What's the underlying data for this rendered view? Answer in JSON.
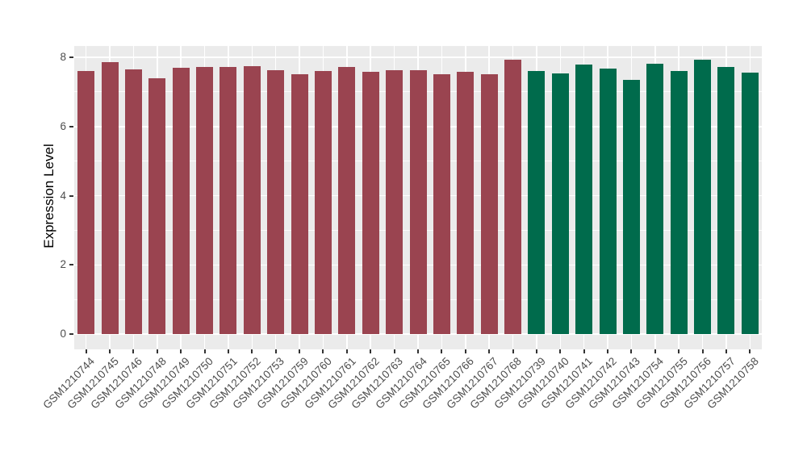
{
  "chart_data": {
    "type": "bar",
    "title": "",
    "xlabel": "",
    "ylabel": "Expression Level",
    "ylim": [
      0,
      8.35
    ],
    "y_ticks": [
      0,
      2,
      4,
      6,
      8
    ],
    "y_minor_ticks": [
      1,
      3,
      5,
      7
    ],
    "grid": true,
    "legend": "none",
    "panel_background": "#EBEBEB",
    "grid_color": "#FFFFFF",
    "axis_text_color": "#4d4d4d",
    "series": [
      {
        "name": "group-maroon",
        "color": "#9A4450",
        "points": [
          {
            "label": "GSM1210744",
            "value": 7.61
          },
          {
            "label": "GSM1210745",
            "value": 7.86
          },
          {
            "label": "GSM1210746",
            "value": 7.64
          },
          {
            "label": "GSM1210748",
            "value": 7.4
          },
          {
            "label": "GSM1210749",
            "value": 7.69
          },
          {
            "label": "GSM1210750",
            "value": 7.71
          },
          {
            "label": "GSM1210751",
            "value": 7.73
          },
          {
            "label": "GSM1210752",
            "value": 7.74
          },
          {
            "label": "GSM1210753",
            "value": 7.63
          },
          {
            "label": "GSM1210759",
            "value": 7.5
          },
          {
            "label": "GSM1210760",
            "value": 7.6
          },
          {
            "label": "GSM1210761",
            "value": 7.73
          },
          {
            "label": "GSM1210762",
            "value": 7.58
          },
          {
            "label": "GSM1210763",
            "value": 7.63
          },
          {
            "label": "GSM1210764",
            "value": 7.63
          },
          {
            "label": "GSM1210765",
            "value": 7.5
          },
          {
            "label": "GSM1210766",
            "value": 7.59
          },
          {
            "label": "GSM1210767",
            "value": 7.52
          },
          {
            "label": "GSM1210768",
            "value": 7.93
          }
        ]
      },
      {
        "name": "group-green",
        "color": "#006B4C",
        "points": [
          {
            "label": "GSM1210739",
            "value": 7.61
          },
          {
            "label": "GSM1210740",
            "value": 7.53
          },
          {
            "label": "GSM1210741",
            "value": 7.78
          },
          {
            "label": "GSM1210742",
            "value": 7.68
          },
          {
            "label": "GSM1210743",
            "value": 7.34
          },
          {
            "label": "GSM1210754",
            "value": 7.81
          },
          {
            "label": "GSM1210755",
            "value": 7.61
          },
          {
            "label": "GSM1210756",
            "value": 7.92
          },
          {
            "label": "GSM1210757",
            "value": 7.71
          },
          {
            "label": "GSM1210758",
            "value": 7.55
          }
        ]
      }
    ]
  }
}
